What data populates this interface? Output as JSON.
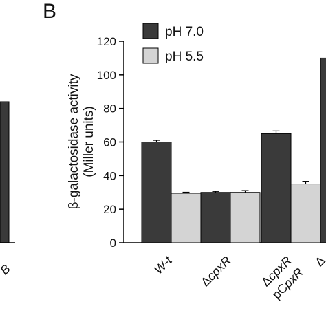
{
  "panel_label": "B",
  "left_panel": {
    "partial_label": "B"
  },
  "chart_data": {
    "type": "bar",
    "title": "",
    "ylabel_line1": "β-galactosidase activity",
    "ylabel_line2": "(Miller units)",
    "ylim": [
      0,
      120
    ],
    "yticks": [
      0,
      20,
      40,
      60,
      80,
      100,
      120
    ],
    "grid": false,
    "legend_position": "top-left",
    "categories": [
      {
        "lines": [
          [
            {
              "t": "W-",
              "i": true
            },
            {
              "t": "t",
              "i": true
            }
          ]
        ]
      },
      {
        "lines": [
          [
            {
              "t": "Δ",
              "i": false
            },
            {
              "t": "cpxR",
              "i": true
            }
          ]
        ]
      },
      {
        "lines": [
          [
            {
              "t": "Δ",
              "i": false
            },
            {
              "t": "cpxR",
              "i": true
            }
          ],
          [
            {
              "t": "pC",
              "i": false
            },
            {
              "t": "pxR",
              "i": true
            }
          ]
        ]
      },
      {
        "lines": [
          [
            {
              "t": "Δ",
              "i": false
            }
          ]
        ]
      }
    ],
    "series": [
      {
        "name": "pH 7.0",
        "color": "#3a3a3a",
        "values": [
          60,
          30,
          65,
          110
        ],
        "errors": [
          1,
          0.6,
          1.6,
          null
        ]
      },
      {
        "name": "pH 5.5",
        "color": "#d4d4d4",
        "values": [
          29.5,
          30,
          35,
          null
        ],
        "errors": [
          0.6,
          1.1,
          1.6,
          null
        ]
      }
    ]
  }
}
